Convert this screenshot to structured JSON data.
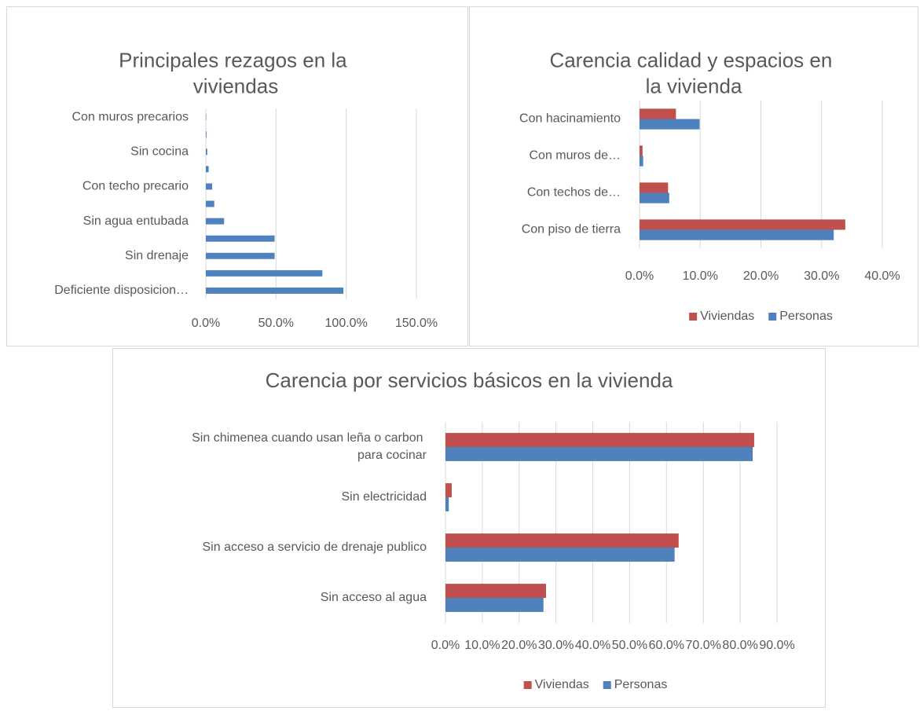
{
  "chart_data": [
    {
      "type": "bar",
      "orientation": "horizontal",
      "title": "Principales rezagos en la viviendas",
      "categories": [
        "Deficiente disposicion…",
        null,
        "Sin drenaje",
        null,
        "Sin agua entubada",
        null,
        "Con techo precario",
        null,
        "Sin cocina",
        null,
        "Con muros precarios"
      ],
      "values": [
        98,
        83,
        49,
        49,
        13,
        6,
        4.5,
        2,
        1,
        0.5,
        0.3
      ],
      "color": "#4f81bd",
      "xlim": [
        0,
        150
      ],
      "xticks": [
        {
          "value": 0,
          "label": "0.0%"
        },
        {
          "value": 50,
          "label": "50.0%"
        },
        {
          "value": 100,
          "label": "100.0%"
        },
        {
          "value": 150,
          "label": "150.0%"
        }
      ],
      "grid": true
    },
    {
      "type": "bar",
      "orientation": "horizontal",
      "title": "Carencia calidad y espacios en la vivienda",
      "categories": [
        "Con piso de tierra",
        "Con techos de…",
        "Con muros de…",
        "Con hacinamiento"
      ],
      "series": [
        {
          "name": "Viviendas",
          "color": "#c0504d",
          "values": [
            33.9,
            4.7,
            0.5,
            6
          ]
        },
        {
          "name": "Personas",
          "color": "#4f81bd",
          "values": [
            32,
            4.9,
            0.6,
            9.9
          ]
        }
      ],
      "xlim": [
        0,
        40
      ],
      "xticks": [
        {
          "value": 0,
          "label": "0.0%"
        },
        {
          "value": 10,
          "label": "10.0%"
        },
        {
          "value": 20,
          "label": "20.0%"
        },
        {
          "value": 30,
          "label": "30.0%"
        },
        {
          "value": 40,
          "label": "40.0%"
        }
      ],
      "grid": true,
      "legend": "bottom"
    },
    {
      "type": "bar",
      "orientation": "horizontal",
      "title": "Carencia por servicios básicos en la vivienda",
      "categories": [
        "Sin acceso al agua",
        "Sin acceso a servicio de drenaje publico",
        "Sin electricidad",
        "Sin chimenea cuando usan leña o carbon para cocinar"
      ],
      "series": [
        {
          "name": "Viviendas",
          "color": "#c0504d",
          "values": [
            27.3,
            63.3,
            1.7,
            83.8
          ]
        },
        {
          "name": "Personas",
          "color": "#4f81bd",
          "values": [
            26.6,
            62.2,
            0.9,
            83.4
          ]
        }
      ],
      "xlim": [
        0,
        90
      ],
      "xticks": [
        {
          "value": 0,
          "label": "0.0%"
        },
        {
          "value": 10,
          "label": "10.0%"
        },
        {
          "value": 20,
          "label": "20.0%"
        },
        {
          "value": 30,
          "label": "30.0%"
        },
        {
          "value": 40,
          "label": "40.0%"
        },
        {
          "value": 50,
          "label": "50.0%"
        },
        {
          "value": 60,
          "label": "60.0%"
        },
        {
          "value": 70,
          "label": "70.0%"
        },
        {
          "value": 80,
          "label": "80.0%"
        },
        {
          "value": 90,
          "label": "90.0%"
        }
      ],
      "grid": true,
      "legend": "bottom"
    }
  ]
}
